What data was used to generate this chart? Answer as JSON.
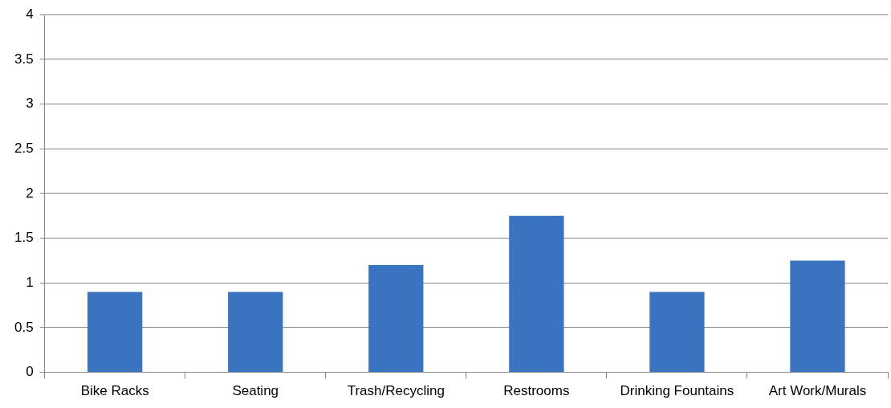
{
  "chart_data": {
    "type": "bar",
    "categories": [
      "Bike Racks",
      "Seating",
      "Trash/Recycling",
      "Restrooms",
      "Drinking Fountains",
      "Art Work/Murals"
    ],
    "values": [
      0.9,
      0.9,
      1.2,
      1.75,
      0.9,
      1.25
    ],
    "color": "#3a73c0",
    "ylim": [
      0,
      4
    ],
    "yticks": [
      0,
      0.5,
      1,
      1.5,
      2,
      2.5,
      3,
      3.5,
      4
    ],
    "grid": "y",
    "legend": false
  }
}
